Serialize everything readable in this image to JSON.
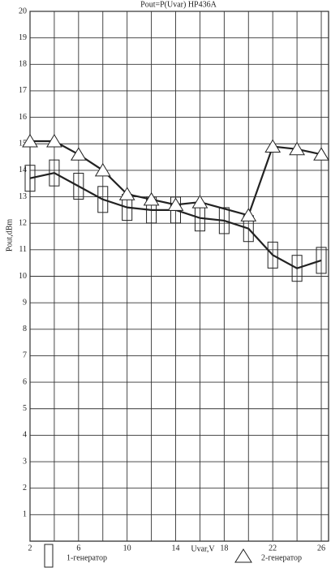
{
  "chart_data": {
    "type": "line_markers",
    "title": "Pout=P(Uvar) HP436A",
    "x_label": "Uvar,V",
    "y_label": "Pout,dBm",
    "xlim": [
      2,
      26.6
    ],
    "ylim": [
      0,
      20
    ],
    "xticks": [
      2,
      6,
      10,
      14,
      18,
      22,
      26
    ],
    "x_minor_ticks": [
      4,
      8,
      12,
      16,
      20,
      24
    ],
    "yticks": [
      1,
      2,
      3,
      4,
      5,
      6,
      7,
      8,
      9,
      10,
      11,
      12,
      13,
      14,
      15,
      16,
      17,
      18,
      19,
      20
    ],
    "grid": true,
    "series": [
      {
        "name": "1-генератор",
        "marker": "rect",
        "color": "#222",
        "x": [
          2,
          4,
          6,
          8,
          10,
          12,
          14,
          16,
          18,
          20,
          22,
          24,
          26
        ],
        "values": [
          13.7,
          13.9,
          13.4,
          12.9,
          12.6,
          12.5,
          12.5,
          12.2,
          12.1,
          11.8,
          10.8,
          10.3,
          10.6
        ]
      },
      {
        "name": "2-генератор",
        "marker": "triangle",
        "color": "#222",
        "x": [
          2,
          4,
          6,
          8,
          10,
          12,
          14,
          16,
          20,
          22,
          24,
          26
        ],
        "values": [
          15.1,
          15.1,
          14.6,
          14.0,
          13.1,
          12.9,
          12.7,
          12.8,
          12.3,
          14.9,
          14.8,
          14.6
        ]
      }
    ]
  }
}
